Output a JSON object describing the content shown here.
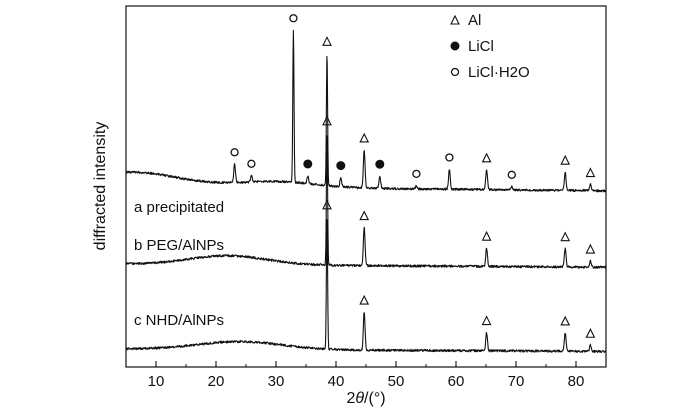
{
  "chart_data": {
    "type": "line",
    "xlabel": "2θ/(°)",
    "ylabel": "diffracted intensity",
    "xlim": [
      5,
      85
    ],
    "xticks": [
      "10",
      "20",
      "30",
      "40",
      "50",
      "60",
      "70",
      "80"
    ],
    "grid": false,
    "legend_position": "top-right",
    "legend": [
      {
        "symbol": "triangle",
        "label": "Al"
      },
      {
        "symbol": "filled-circle",
        "label": "LiCl"
      },
      {
        "symbol": "open-circle",
        "label": "LiCl·H2O"
      }
    ],
    "series": [
      {
        "name": "a  precipitated",
        "baseline": 0,
        "peaks": [
          {
            "x": 23.1,
            "h": 0.12,
            "phase": "open-circle"
          },
          {
            "x": 25.9,
            "h": 0.04,
            "phase": "open-circle"
          },
          {
            "x": 32.9,
            "h": 1.0,
            "phase": "open-circle"
          },
          {
            "x": 35.3,
            "h": 0.05,
            "phase": "filled-circle"
          },
          {
            "x": 38.5,
            "h": 0.87,
            "phase": "triangle"
          },
          {
            "x": 40.8,
            "h": 0.06,
            "phase": "filled-circle"
          },
          {
            "x": 44.7,
            "h": 0.25,
            "phase": "triangle"
          },
          {
            "x": 47.3,
            "h": 0.08,
            "phase": "filled-circle"
          },
          {
            "x": 53.4,
            "h": 0.02,
            "phase": "open-circle"
          },
          {
            "x": 58.9,
            "h": 0.13,
            "phase": "open-circle"
          },
          {
            "x": 65.1,
            "h": 0.13,
            "phase": "triangle"
          },
          {
            "x": 69.3,
            "h": 0.02,
            "phase": "open-circle"
          },
          {
            "x": 78.2,
            "h": 0.12,
            "phase": "triangle"
          },
          {
            "x": 82.4,
            "h": 0.04,
            "phase": "triangle"
          }
        ]
      },
      {
        "name": "b  PEG/AlNPs",
        "baseline": -1,
        "peaks": [
          {
            "x": 38.5,
            "h": 0.87,
            "phase": "triangle"
          },
          {
            "x": 44.7,
            "h": 0.25,
            "phase": "triangle"
          },
          {
            "x": 65.1,
            "h": 0.12,
            "phase": "triangle"
          },
          {
            "x": 78.2,
            "h": 0.12,
            "phase": "triangle"
          },
          {
            "x": 82.4,
            "h": 0.04,
            "phase": "triangle"
          }
        ]
      },
      {
        "name": "c NHD/AlNPs",
        "baseline": -2,
        "peaks": [
          {
            "x": 38.5,
            "h": 0.87,
            "phase": "triangle"
          },
          {
            "x": 44.7,
            "h": 0.25,
            "phase": "triangle"
          },
          {
            "x": 65.1,
            "h": 0.12,
            "phase": "triangle"
          },
          {
            "x": 78.2,
            "h": 0.12,
            "phase": "triangle"
          },
          {
            "x": 82.4,
            "h": 0.04,
            "phase": "triangle"
          }
        ]
      }
    ]
  },
  "axis": {
    "x_title_prefix": "2",
    "x_title_theta": "θ",
    "x_title_suffix": "/(°)"
  }
}
